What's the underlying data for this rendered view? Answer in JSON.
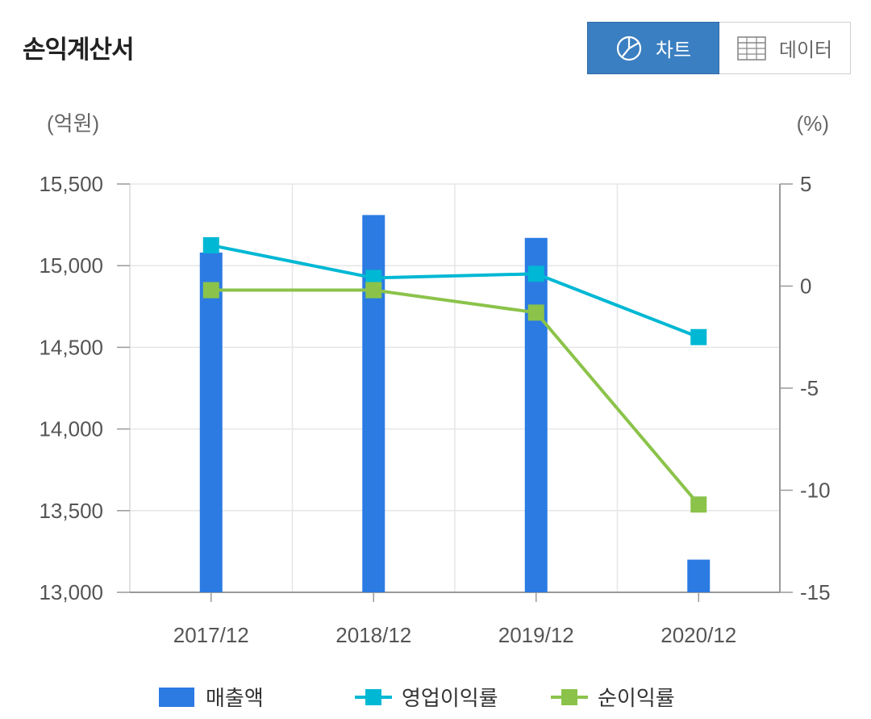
{
  "header": {
    "title": "손익계산서",
    "chart_button_label": "차트",
    "data_button_label": "데이터",
    "chart_icon": "pie-chart-icon",
    "data_icon": "table-grid-icon"
  },
  "colors": {
    "revenue": "#2b7be3",
    "operating_margin": "#00b8d4",
    "net_margin": "#8bc34a",
    "toggle_active": "#3a7fc1"
  },
  "chart_data": {
    "type": "bar",
    "categories": [
      "2017/12",
      "2018/12",
      "2019/12",
      "2020/12"
    ],
    "left_axis": {
      "unit_label": "(억원)",
      "ylim": [
        13000,
        15500
      ],
      "ticks": [
        13000,
        13500,
        14000,
        14500,
        15000,
        15500
      ],
      "tick_labels": [
        "13,000",
        "13,500",
        "14,000",
        "14,500",
        "15,000",
        "15,500"
      ]
    },
    "right_axis": {
      "unit_label": "(%)",
      "ylim": [
        -15,
        5
      ],
      "ticks": [
        -15,
        -10,
        -5,
        0,
        5
      ],
      "tick_labels": [
        "-15",
        "-10",
        "-5",
        "0",
        "5"
      ]
    },
    "series": [
      {
        "name": "매출액",
        "type": "bar",
        "axis": "left",
        "values": [
          15080,
          15310,
          15170,
          13200
        ]
      },
      {
        "name": "영업이익률",
        "type": "line",
        "axis": "right",
        "values": [
          2.0,
          0.4,
          0.6,
          -2.5
        ]
      },
      {
        "name": "순이익률",
        "type": "line",
        "axis": "right",
        "values": [
          -0.2,
          -0.2,
          -1.3,
          -10.7
        ]
      }
    ],
    "grid": true,
    "legend": "bottom"
  }
}
